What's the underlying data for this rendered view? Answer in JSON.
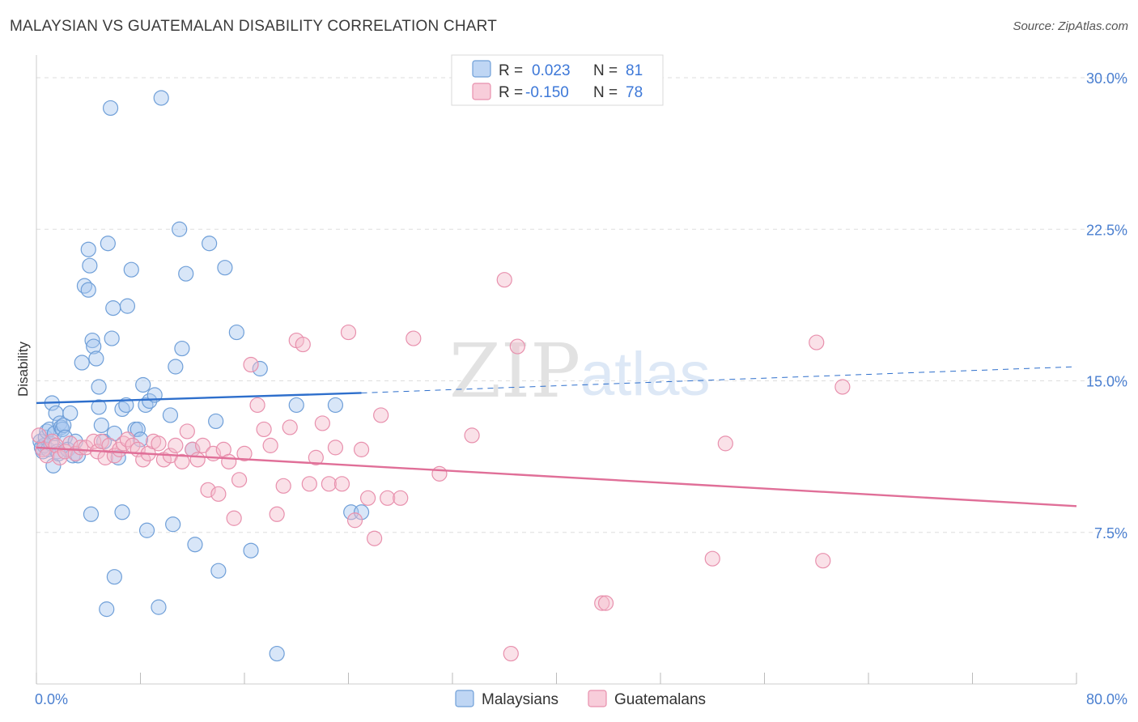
{
  "title": "MALAYSIAN VS GUATEMALAN DISABILITY CORRELATION CHART",
  "source": "Source: ZipAtlas.com",
  "watermark": {
    "zip": "ZIP",
    "atlas": "atlas"
  },
  "colors": {
    "malaysians_fill": "#a9c8f0",
    "malaysians_stroke": "#6f9fd8",
    "malaysians_line": "#2e6fcc",
    "guatemalans_fill": "#f5bccd",
    "guatemalans_stroke": "#e890ad",
    "guatemalans_line": "#e06f98",
    "tick_text": "#4a7fd0"
  },
  "legend": {
    "r_label": "R =",
    "n_label": "N =",
    "malaysians": {
      "r": "0.023",
      "n": "81"
    },
    "guatemalans": {
      "r": "-0.150",
      "n": "78"
    }
  },
  "chart_data": {
    "type": "scatter",
    "title": "MALAYSIAN VS GUATEMALAN DISABILITY CORRELATION CHART",
    "xlabel": "",
    "ylabel": "Disability",
    "xlim": [
      0,
      80
    ],
    "ylim": [
      0,
      30
    ],
    "x_tick_labels": {
      "left": "0.0%",
      "right": "80.0%"
    },
    "y_ticks": [
      {
        "value": 7.5,
        "label": "7.5%"
      },
      {
        "value": 15,
        "label": "15.0%"
      },
      {
        "value": 22.5,
        "label": "22.5%"
      },
      {
        "value": 30,
        "label": "30.0%"
      }
    ],
    "legend_placement": "top-center",
    "grid": "horizontal dashed",
    "series": [
      {
        "name": "Malaysians",
        "r": 0.023,
        "n": 81,
        "trend": {
          "solid": [
            [
              0,
              13.9
            ],
            [
              25,
              14.4
            ]
          ],
          "dashed": [
            [
              25,
              14.4
            ],
            [
              80,
              15.7
            ]
          ]
        },
        "points": [
          [
            0.3,
            12.0
          ],
          [
            0.4,
            11.7
          ],
          [
            0.5,
            11.5
          ],
          [
            0.6,
            11.8
          ],
          [
            0.7,
            12.2
          ],
          [
            0.8,
            12.5
          ],
          [
            0.9,
            11.6
          ],
          [
            1.0,
            12.6
          ],
          [
            1.1,
            11.9
          ],
          [
            1.2,
            13.9
          ],
          [
            1.3,
            10.8
          ],
          [
            1.4,
            12.4
          ],
          [
            1.5,
            13.4
          ],
          [
            1.6,
            11.5
          ],
          [
            1.7,
            11.4
          ],
          [
            1.8,
            12.9
          ],
          [
            1.9,
            12.7
          ],
          [
            2.0,
            12.6
          ],
          [
            2.1,
            12.8
          ],
          [
            2.2,
            12.2
          ],
          [
            2.4,
            11.6
          ],
          [
            2.6,
            13.4
          ],
          [
            2.8,
            11.3
          ],
          [
            3.0,
            12.0
          ],
          [
            3.2,
            11.3
          ],
          [
            3.5,
            15.9
          ],
          [
            3.7,
            19.7
          ],
          [
            4.0,
            19.5
          ],
          [
            4.0,
            21.5
          ],
          [
            4.1,
            20.7
          ],
          [
            4.3,
            17.0
          ],
          [
            4.4,
            16.7
          ],
          [
            4.6,
            16.1
          ],
          [
            4.8,
            14.7
          ],
          [
            4.8,
            13.7
          ],
          [
            5.0,
            12.8
          ],
          [
            5.2,
            12.0
          ],
          [
            5.5,
            21.8
          ],
          [
            5.7,
            28.5
          ],
          [
            5.8,
            17.1
          ],
          [
            5.9,
            18.6
          ],
          [
            6.0,
            12.4
          ],
          [
            6.3,
            11.2
          ],
          [
            6.6,
            13.6
          ],
          [
            6.9,
            13.8
          ],
          [
            7.0,
            18.7
          ],
          [
            7.3,
            20.5
          ],
          [
            7.6,
            12.6
          ],
          [
            7.8,
            12.6
          ],
          [
            8.0,
            12.1
          ],
          [
            8.2,
            14.8
          ],
          [
            8.4,
            13.8
          ],
          [
            8.7,
            14.0
          ],
          [
            9.1,
            14.3
          ],
          [
            9.6,
            29.0
          ],
          [
            10.3,
            13.3
          ],
          [
            10.7,
            15.7
          ],
          [
            11.0,
            22.5
          ],
          [
            11.2,
            16.6
          ],
          [
            11.5,
            20.3
          ],
          [
            12.0,
            11.6
          ],
          [
            13.3,
            21.8
          ],
          [
            13.8,
            13.0
          ],
          [
            14.5,
            20.6
          ],
          [
            15.4,
            17.4
          ],
          [
            17.2,
            15.6
          ],
          [
            20.0,
            13.8
          ],
          [
            23.0,
            13.8
          ],
          [
            24.2,
            8.5
          ],
          [
            25.0,
            8.5
          ],
          [
            4.2,
            8.4
          ],
          [
            6.6,
            8.5
          ],
          [
            8.5,
            7.6
          ],
          [
            10.5,
            7.9
          ],
          [
            14.0,
            5.6
          ],
          [
            16.5,
            6.6
          ],
          [
            6.0,
            5.3
          ],
          [
            5.4,
            3.7
          ],
          [
            9.4,
            3.8
          ],
          [
            18.5,
            1.5
          ],
          [
            12.2,
            6.9
          ]
        ]
      },
      {
        "name": "Guatemalans",
        "r": -0.15,
        "n": 78,
        "trend": {
          "solid": [
            [
              0,
              11.7
            ],
            [
              80,
              8.8
            ]
          ]
        },
        "points": [
          [
            0.2,
            12.3
          ],
          [
            0.5,
            11.6
          ],
          [
            0.8,
            11.3
          ],
          [
            1.2,
            12.0
          ],
          [
            1.5,
            11.8
          ],
          [
            1.8,
            11.2
          ],
          [
            2.2,
            11.5
          ],
          [
            2.6,
            11.9
          ],
          [
            3.0,
            11.4
          ],
          [
            3.4,
            11.7
          ],
          [
            3.8,
            11.7
          ],
          [
            4.4,
            12.0
          ],
          [
            4.7,
            11.5
          ],
          [
            5.0,
            12.0
          ],
          [
            5.3,
            11.2
          ],
          [
            5.6,
            11.8
          ],
          [
            6.0,
            11.3
          ],
          [
            6.4,
            11.6
          ],
          [
            6.7,
            11.9
          ],
          [
            7.0,
            12.1
          ],
          [
            7.4,
            11.8
          ],
          [
            7.8,
            11.6
          ],
          [
            8.2,
            11.1
          ],
          [
            8.6,
            11.4
          ],
          [
            9.0,
            12.0
          ],
          [
            9.4,
            11.9
          ],
          [
            9.8,
            11.1
          ],
          [
            10.3,
            11.3
          ],
          [
            10.7,
            11.8
          ],
          [
            11.2,
            11.0
          ],
          [
            11.6,
            12.5
          ],
          [
            12.0,
            11.6
          ],
          [
            12.4,
            11.1
          ],
          [
            12.8,
            11.8
          ],
          [
            13.2,
            9.6
          ],
          [
            13.6,
            11.4
          ],
          [
            14.0,
            9.4
          ],
          [
            14.4,
            11.6
          ],
          [
            14.8,
            11.0
          ],
          [
            15.2,
            8.2
          ],
          [
            15.6,
            10.1
          ],
          [
            16.0,
            11.4
          ],
          [
            16.5,
            15.8
          ],
          [
            17.0,
            13.8
          ],
          [
            17.5,
            12.6
          ],
          [
            18.0,
            11.8
          ],
          [
            18.5,
            8.4
          ],
          [
            19.0,
            9.8
          ],
          [
            19.5,
            12.7
          ],
          [
            20.0,
            17.0
          ],
          [
            20.5,
            16.8
          ],
          [
            21.0,
            9.9
          ],
          [
            21.5,
            11.2
          ],
          [
            22.0,
            12.9
          ],
          [
            22.5,
            9.9
          ],
          [
            23.0,
            11.7
          ],
          [
            23.5,
            9.9
          ],
          [
            24.0,
            17.4
          ],
          [
            24.5,
            8.1
          ],
          [
            25.0,
            11.6
          ],
          [
            25.5,
            9.2
          ],
          [
            26.0,
            7.2
          ],
          [
            26.5,
            13.3
          ],
          [
            27.0,
            9.2
          ],
          [
            28.0,
            9.2
          ],
          [
            29.0,
            17.1
          ],
          [
            31.0,
            10.4
          ],
          [
            33.5,
            12.3
          ],
          [
            36.0,
            20.0
          ],
          [
            37.0,
            16.7
          ],
          [
            53.0,
            11.9
          ],
          [
            60.0,
            16.9
          ],
          [
            62.0,
            14.7
          ],
          [
            52.0,
            6.2
          ],
          [
            60.5,
            6.1
          ],
          [
            43.5,
            4.0
          ],
          [
            43.8,
            4.0
          ],
          [
            36.5,
            1.5
          ]
        ]
      }
    ],
    "bottom_legend": [
      "Malaysians",
      "Guatemalans"
    ]
  }
}
